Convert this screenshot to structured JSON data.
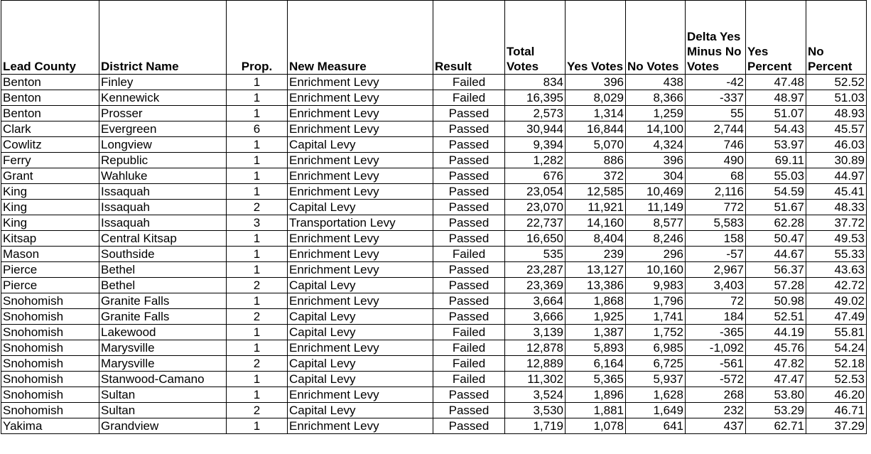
{
  "headers": [
    "Lead County",
    "District Name",
    "Prop.",
    "New Measure",
    "Result",
    "Total Votes",
    "Yes Votes",
    "No Votes",
    "Delta Yes Minus No Votes",
    "Yes Percent",
    "No Percent"
  ],
  "rows": [
    [
      "Benton",
      "Finley",
      "1",
      "Enrichment Levy",
      "Failed",
      "834",
      "396",
      "438",
      "-42",
      "47.48",
      "52.52"
    ],
    [
      "Benton",
      "Kennewick",
      "1",
      "Enrichment Levy",
      "Failed",
      "16,395",
      "8,029",
      "8,366",
      "-337",
      "48.97",
      "51.03"
    ],
    [
      "Benton",
      "Prosser",
      "1",
      "Enrichment Levy",
      "Passed",
      "2,573",
      "1,314",
      "1,259",
      "55",
      "51.07",
      "48.93"
    ],
    [
      "Clark",
      "Evergreen",
      "6",
      "Enrichment Levy",
      "Passed",
      "30,944",
      "16,844",
      "14,100",
      "2,744",
      "54.43",
      "45.57"
    ],
    [
      "Cowlitz",
      "Longview",
      "1",
      "Capital Levy",
      "Passed",
      "9,394",
      "5,070",
      "4,324",
      "746",
      "53.97",
      "46.03"
    ],
    [
      "Ferry",
      "Republic",
      "1",
      "Enrichment Levy",
      "Passed",
      "1,282",
      "886",
      "396",
      "490",
      "69.11",
      "30.89"
    ],
    [
      "Grant",
      "Wahluke",
      "1",
      "Enrichment Levy",
      "Passed",
      "676",
      "372",
      "304",
      "68",
      "55.03",
      "44.97"
    ],
    [
      "King",
      "Issaquah",
      "1",
      "Enrichment Levy",
      "Passed",
      "23,054",
      "12,585",
      "10,469",
      "2,116",
      "54.59",
      "45.41"
    ],
    [
      "King",
      "Issaquah",
      "2",
      "Capital Levy",
      "Passed",
      "23,070",
      "11,921",
      "11,149",
      "772",
      "51.67",
      "48.33"
    ],
    [
      "King",
      "Issaquah",
      "3",
      "Transportation Levy",
      "Passed",
      "22,737",
      "14,160",
      "8,577",
      "5,583",
      "62.28",
      "37.72"
    ],
    [
      "Kitsap",
      "Central Kitsap",
      "1",
      "Enrichment Levy",
      "Passed",
      "16,650",
      "8,404",
      "8,246",
      "158",
      "50.47",
      "49.53"
    ],
    [
      "Mason",
      "Southside",
      "1",
      "Enrichment Levy",
      "Failed",
      "535",
      "239",
      "296",
      "-57",
      "44.67",
      "55.33"
    ],
    [
      "Pierce",
      "Bethel",
      "1",
      "Enrichment Levy",
      "Passed",
      "23,287",
      "13,127",
      "10,160",
      "2,967",
      "56.37",
      "43.63"
    ],
    [
      "Pierce",
      "Bethel",
      "2",
      "Capital Levy",
      "Passed",
      "23,369",
      "13,386",
      "9,983",
      "3,403",
      "57.28",
      "42.72"
    ],
    [
      "Snohomish",
      "Granite Falls",
      "1",
      "Enrichment Levy",
      "Passed",
      "3,664",
      "1,868",
      "1,796",
      "72",
      "50.98",
      "49.02"
    ],
    [
      "Snohomish",
      "Granite Falls",
      "2",
      "Capital Levy",
      "Passed",
      "3,666",
      "1,925",
      "1,741",
      "184",
      "52.51",
      "47.49"
    ],
    [
      "Snohomish",
      "Lakewood",
      "1",
      "Capital Levy",
      "Failed",
      "3,139",
      "1,387",
      "1,752",
      "-365",
      "44.19",
      "55.81"
    ],
    [
      "Snohomish",
      "Marysville",
      "1",
      "Enrichment Levy",
      "Failed",
      "12,878",
      "5,893",
      "6,985",
      "-1,092",
      "45.76",
      "54.24"
    ],
    [
      "Snohomish",
      "Marysville",
      "2",
      "Capital Levy",
      "Failed",
      "12,889",
      "6,164",
      "6,725",
      "-561",
      "47.82",
      "52.18"
    ],
    [
      "Snohomish",
      "Stanwood-Camano",
      "1",
      "Capital Levy",
      "Failed",
      "11,302",
      "5,365",
      "5,937",
      "-572",
      "47.47",
      "52.53"
    ],
    [
      "Snohomish",
      "Sultan",
      "1",
      "Enrichment Levy",
      "Passed",
      "3,524",
      "1,896",
      "1,628",
      "268",
      "53.80",
      "46.20"
    ],
    [
      "Snohomish",
      "Sultan",
      "2",
      "Capital Levy",
      "Passed",
      "3,530",
      "1,881",
      "1,649",
      "232",
      "53.29",
      "46.71"
    ],
    [
      "Yakima",
      "Grandview",
      "1",
      "Enrichment Levy",
      "Passed",
      "1,719",
      "1,078",
      "641",
      "437",
      "62.71",
      "37.29"
    ]
  ]
}
